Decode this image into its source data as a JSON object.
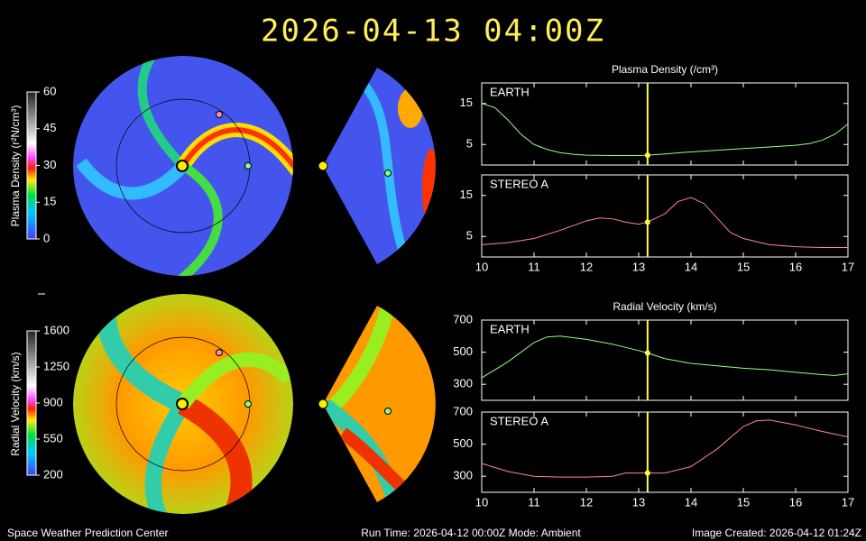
{
  "header": {
    "title": "2026-04-13 04:00Z"
  },
  "footer": {
    "left": "Space Weather Prediction Center",
    "center": "Run Time: 2026-04-12 00:00Z  Mode: Ambient",
    "right": "Image Created: 2026-04-12 01:24Z"
  },
  "colorbars": [
    {
      "label": "Plasma Density (r²N/cm³)",
      "lim": [
        0,
        60
      ],
      "ticks": [
        0,
        15,
        30,
        45,
        60
      ]
    },
    {
      "label": "Radial Velocity (km/s)",
      "lim": [
        200,
        1600
      ],
      "ticks": [
        200,
        550,
        900,
        1250,
        1600
      ]
    }
  ],
  "chart_data": [
    {
      "type": "line",
      "title": "Plasma Density (/cm³)",
      "panel_label": "EARTH",
      "color": "#99ff88",
      "x": [
        10,
        10.25,
        10.5,
        10.75,
        11,
        11.25,
        11.5,
        11.75,
        12,
        12.5,
        13,
        13.17,
        13.5,
        14,
        14.5,
        15,
        15.5,
        16,
        16.25,
        16.5,
        16.75,
        17
      ],
      "values": [
        15,
        14,
        11,
        7.5,
        5,
        3.8,
        3,
        2.6,
        2.4,
        2.3,
        2.3,
        2.4,
        2.7,
        3.2,
        3.6,
        4,
        4.4,
        4.8,
        5.2,
        6,
        7.5,
        10
      ],
      "xlim": [
        10,
        17
      ],
      "xticks": [
        10,
        11,
        12,
        13,
        14,
        15,
        16,
        17
      ],
      "ylim": [
        0,
        20
      ],
      "yticks": [
        5,
        15
      ],
      "marker_x": 13.17,
      "x_labels": false
    },
    {
      "type": "line",
      "panel_label": "STEREO A",
      "color": "#ff8888",
      "x": [
        10,
        10.5,
        11,
        11.5,
        12,
        12.25,
        12.5,
        12.75,
        13,
        13.17,
        13.5,
        13.75,
        14,
        14.25,
        14.5,
        14.75,
        15,
        15.5,
        16,
        16.5,
        17
      ],
      "values": [
        3,
        3.5,
        4.5,
        6.5,
        8.8,
        9.5,
        9.3,
        8.5,
        8,
        8.5,
        10.5,
        13.5,
        14.5,
        13,
        9.5,
        6,
        4.5,
        3,
        2.5,
        2.3,
        2.3
      ],
      "xlim": [
        10,
        17
      ],
      "xticks": [
        10,
        11,
        12,
        13,
        14,
        15,
        16,
        17
      ],
      "ylim": [
        0,
        20
      ],
      "yticks": [
        5,
        15
      ],
      "marker_x": 13.17,
      "x_labels": true
    },
    {
      "type": "line",
      "title": "Radial Velocity (km/s)",
      "panel_label": "EARTH",
      "color": "#99ff88",
      "x": [
        10,
        10.5,
        11,
        11.25,
        11.5,
        12,
        12.5,
        13,
        13.17,
        13.5,
        14,
        14.5,
        15,
        15.5,
        16,
        16.5,
        16.75,
        17
      ],
      "values": [
        340,
        440,
        560,
        595,
        600,
        580,
        550,
        510,
        495,
        460,
        430,
        415,
        400,
        390,
        375,
        360,
        355,
        365
      ],
      "xlim": [
        10,
        17
      ],
      "xticks": [
        10,
        11,
        12,
        13,
        14,
        15,
        16,
        17
      ],
      "ylim": [
        200,
        700
      ],
      "yticks": [
        300,
        500,
        700
      ],
      "marker_x": 13.17,
      "x_labels": false
    },
    {
      "type": "line",
      "panel_label": "STEREO A",
      "color": "#ff8888",
      "x": [
        10,
        10.5,
        11,
        11.5,
        12,
        12.5,
        12.75,
        13,
        13.17,
        13.5,
        14,
        14.5,
        15,
        15.25,
        15.5,
        16,
        16.5,
        17
      ],
      "values": [
        380,
        330,
        300,
        295,
        295,
        300,
        320,
        320,
        320,
        320,
        360,
        470,
        610,
        645,
        650,
        620,
        580,
        545
      ],
      "xlim": [
        10,
        17
      ],
      "xticks": [
        10,
        11,
        12,
        13,
        14,
        15,
        16,
        17
      ],
      "ylim": [
        200,
        700
      ],
      "yticks": [
        300,
        500,
        700
      ],
      "marker_x": 13.17,
      "x_labels": true
    }
  ]
}
